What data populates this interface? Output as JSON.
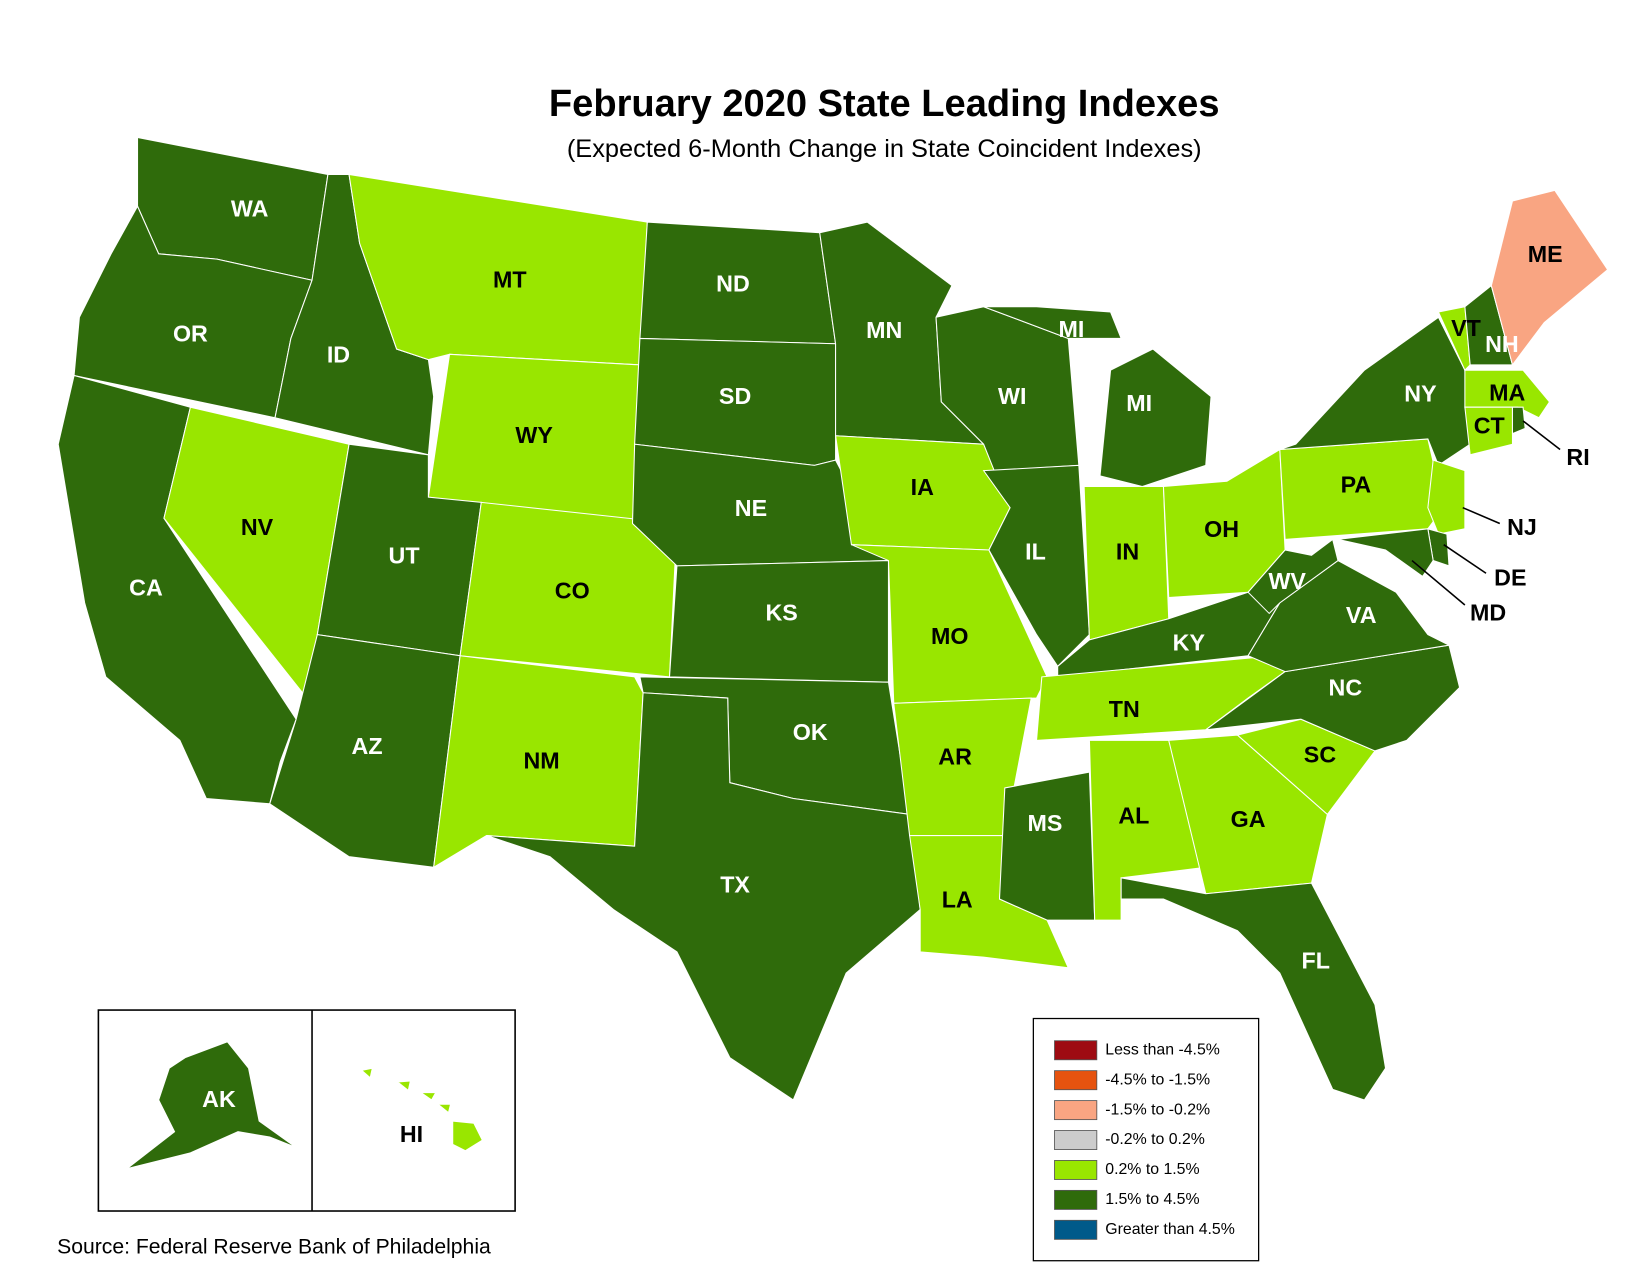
{
  "title": "February 2020 State Leading Indexes",
  "subtitle": "(Expected 6-Month Change in State Coincident Indexes)",
  "source": "Source: Federal Reserve Bank of Philadelphia",
  "legend": [
    {
      "label": "Less than -4.5%",
      "color": "#9e0b12"
    },
    {
      "label": "-4.5% to -1.5%",
      "color": "#e6530f"
    },
    {
      "label": "-1.5% to -0.2%",
      "color": "#f9a582"
    },
    {
      "label": "-0.2% to 0.2%",
      "color": "#cccccc"
    },
    {
      "label": "0.2% to 1.5%",
      "color": "#99e600"
    },
    {
      "label": "1.5% to 4.5%",
      "color": "#2f6b0b"
    },
    {
      "label": "Greater than 4.5%",
      "color": "#005a8a"
    }
  ],
  "states": [
    {
      "abbr": "WA",
      "color": "#2f6b0b"
    },
    {
      "abbr": "OR",
      "color": "#2f6b0b"
    },
    {
      "abbr": "CA",
      "color": "#2f6b0b"
    },
    {
      "abbr": "NV",
      "color": "#99e600"
    },
    {
      "abbr": "ID",
      "color": "#2f6b0b"
    },
    {
      "abbr": "MT",
      "color": "#99e600"
    },
    {
      "abbr": "WY",
      "color": "#99e600"
    },
    {
      "abbr": "UT",
      "color": "#2f6b0b"
    },
    {
      "abbr": "CO",
      "color": "#99e600"
    },
    {
      "abbr": "AZ",
      "color": "#2f6b0b"
    },
    {
      "abbr": "NM",
      "color": "#99e600"
    },
    {
      "abbr": "ND",
      "color": "#2f6b0b"
    },
    {
      "abbr": "SD",
      "color": "#2f6b0b"
    },
    {
      "abbr": "NE",
      "color": "#2f6b0b"
    },
    {
      "abbr": "KS",
      "color": "#2f6b0b"
    },
    {
      "abbr": "OK",
      "color": "#2f6b0b"
    },
    {
      "abbr": "TX",
      "color": "#2f6b0b"
    },
    {
      "abbr": "MN",
      "color": "#2f6b0b"
    },
    {
      "abbr": "IA",
      "color": "#99e600"
    },
    {
      "abbr": "MO",
      "color": "#99e600"
    },
    {
      "abbr": "AR",
      "color": "#99e600"
    },
    {
      "abbr": "LA",
      "color": "#99e600"
    },
    {
      "abbr": "WI",
      "color": "#2f6b0b"
    },
    {
      "abbr": "IL",
      "color": "#2f6b0b"
    },
    {
      "abbr": "MI",
      "color": "#2f6b0b"
    },
    {
      "abbr": "IN",
      "color": "#99e600"
    },
    {
      "abbr": "OH",
      "color": "#99e600"
    },
    {
      "abbr": "KY",
      "color": "#2f6b0b"
    },
    {
      "abbr": "TN",
      "color": "#99e600"
    },
    {
      "abbr": "MS",
      "color": "#2f6b0b"
    },
    {
      "abbr": "AL",
      "color": "#99e600"
    },
    {
      "abbr": "GA",
      "color": "#99e600"
    },
    {
      "abbr": "FL",
      "color": "#2f6b0b"
    },
    {
      "abbr": "SC",
      "color": "#99e600"
    },
    {
      "abbr": "NC",
      "color": "#2f6b0b"
    },
    {
      "abbr": "VA",
      "color": "#2f6b0b"
    },
    {
      "abbr": "WV",
      "color": "#2f6b0b"
    },
    {
      "abbr": "PA",
      "color": "#99e600"
    },
    {
      "abbr": "NY",
      "color": "#2f6b0b"
    },
    {
      "abbr": "NJ",
      "color": "#99e600"
    },
    {
      "abbr": "DE",
      "color": "#2f6b0b"
    },
    {
      "abbr": "MD",
      "color": "#2f6b0b"
    },
    {
      "abbr": "VT",
      "color": "#99e600"
    },
    {
      "abbr": "NH",
      "color": "#2f6b0b"
    },
    {
      "abbr": "ME",
      "color": "#f9a582"
    },
    {
      "abbr": "MA",
      "color": "#99e600"
    },
    {
      "abbr": "CT",
      "color": "#99e600"
    },
    {
      "abbr": "RI",
      "color": "#2f6b0b"
    },
    {
      "abbr": "AK",
      "color": "#2f6b0b"
    },
    {
      "abbr": "HI",
      "color": "#99e600"
    }
  ]
}
